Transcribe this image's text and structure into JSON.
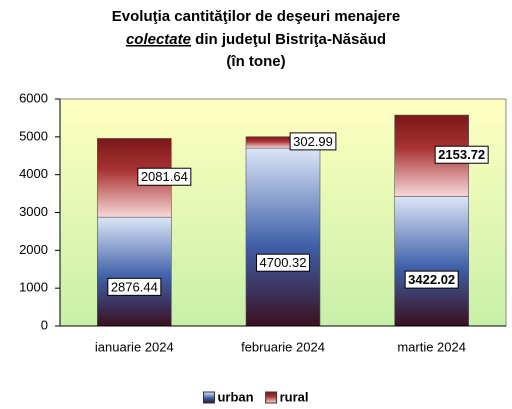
{
  "chart_data": {
    "type": "stacked-bar",
    "title": [
      "Evoluţia cantităţilor de deşeuri menajere",
      "colectate",
      "din judeţul Bistriţa-Năsăud",
      "(în tone)"
    ],
    "categories": [
      "ianuarie 2024",
      "februarie 2024",
      "martie 2024"
    ],
    "series": [
      {
        "name": "urban",
        "color": "#3f5fa8",
        "values": [
          2876.44,
          4700.32,
          3422.02
        ]
      },
      {
        "name": "rural",
        "color": "#a83232",
        "values": [
          2081.64,
          302.99,
          2153.72
        ]
      }
    ],
    "ylim": [
      0,
      6000
    ],
    "yticks": [
      0,
      1000,
      2000,
      3000,
      4000,
      5000,
      6000
    ],
    "grid": false,
    "legend": "bottom"
  }
}
